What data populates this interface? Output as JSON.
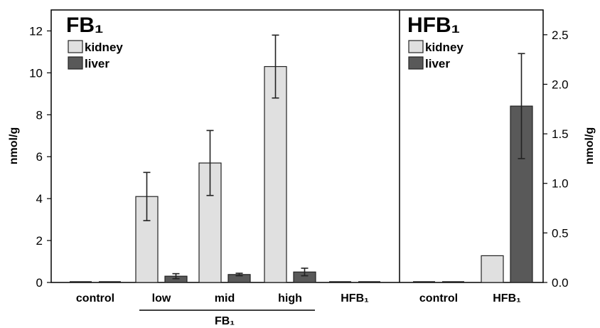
{
  "chart_data": [
    {
      "type": "bar",
      "title": "FB₁",
      "ylabel": "nmol/g",
      "ylim": [
        0,
        13
      ],
      "yticks": [
        "0",
        "2",
        "4",
        "6",
        "8",
        "10",
        "12"
      ],
      "categories": [
        "control",
        "low",
        "mid",
        "high",
        "HFB₁"
      ],
      "group_label": "FB₁",
      "series": [
        {
          "name": "kidney",
          "color": "#e0e0e0",
          "values": [
            0,
            4.1,
            5.7,
            10.3,
            0
          ],
          "errors": [
            0,
            1.15,
            1.55,
            1.5,
            0
          ]
        },
        {
          "name": "liver",
          "color": "#595959",
          "values": [
            0,
            0.3,
            0.38,
            0.5,
            0
          ],
          "errors": [
            0,
            0.12,
            0.06,
            0.18,
            0
          ]
        }
      ]
    },
    {
      "type": "bar",
      "title": "HFB₁",
      "ylabel": "nmol/g",
      "ylim": [
        0,
        2.75
      ],
      "yticks": [
        "0.0",
        "0.5",
        "1.0",
        "1.5",
        "2.0",
        "2.5"
      ],
      "categories": [
        "control",
        "HFB₁"
      ],
      "series": [
        {
          "name": "kidney",
          "color": "#e0e0e0",
          "values": [
            0,
            0.27
          ],
          "errors": [
            0,
            0
          ]
        },
        {
          "name": "liver",
          "color": "#595959",
          "values": [
            0,
            1.78
          ],
          "errors": [
            0,
            0.53
          ]
        }
      ]
    }
  ]
}
